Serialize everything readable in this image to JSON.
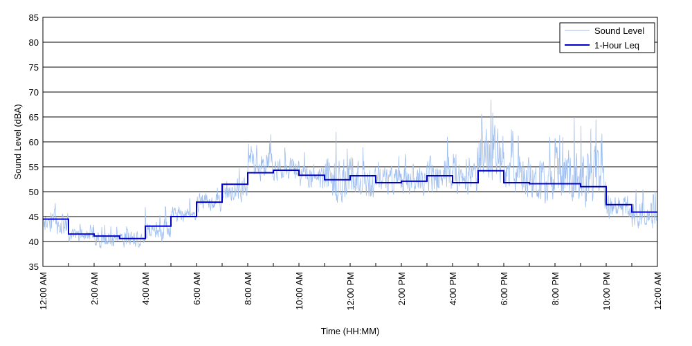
{
  "chart_data": {
    "type": "line",
    "title": "",
    "xlabel": "Time (HH:MM)",
    "ylabel": "Sound Level (dBA)",
    "ylim": [
      35,
      85
    ],
    "yticks": [
      35,
      40,
      45,
      50,
      55,
      60,
      65,
      70,
      75,
      80,
      85
    ],
    "xlim_hours": [
      0,
      24
    ],
    "xticks": [
      {
        "hour": 0,
        "label": "12:00 AM"
      },
      {
        "hour": 2,
        "label": "2:00 AM"
      },
      {
        "hour": 4,
        "label": "4:00 AM"
      },
      {
        "hour": 6,
        "label": "6:00 AM"
      },
      {
        "hour": 8,
        "label": "8:00 AM"
      },
      {
        "hour": 10,
        "label": "10:00 AM"
      },
      {
        "hour": 12,
        "label": "12:00 PM"
      },
      {
        "hour": 14,
        "label": "2:00 PM"
      },
      {
        "hour": 16,
        "label": "4:00 PM"
      },
      {
        "hour": 18,
        "label": "6:00 PM"
      },
      {
        "hour": 20,
        "label": "8:00 PM"
      },
      {
        "hour": 22,
        "label": "10:00 PM"
      },
      {
        "hour": 24,
        "label": "12:00 AM"
      }
    ],
    "grid": "horizontal",
    "legend_position": "top-right",
    "series": [
      {
        "name": "Sound Level",
        "color": "#9fbef0",
        "approx_hourly_range": [
          [
            0,
            40,
            49
          ],
          [
            1,
            39,
            44
          ],
          [
            2,
            38,
            44
          ],
          [
            3,
            38,
            44
          ],
          [
            4,
            39,
            47
          ],
          [
            5,
            43,
            49
          ],
          [
            6,
            45,
            52
          ],
          [
            7,
            47,
            55
          ],
          [
            8,
            51,
            61
          ],
          [
            9,
            51,
            59
          ],
          [
            10,
            49,
            58
          ],
          [
            11,
            46,
            62
          ],
          [
            12,
            47,
            61
          ],
          [
            13,
            48,
            58
          ],
          [
            14,
            48,
            58
          ],
          [
            15,
            48,
            61
          ],
          [
            16,
            48,
            59
          ],
          [
            17,
            49,
            68
          ],
          [
            18,
            47,
            63
          ],
          [
            19,
            46,
            61
          ],
          [
            20,
            45,
            65
          ],
          [
            21,
            44,
            64
          ],
          [
            22,
            43,
            52
          ],
          [
            23,
            41,
            52
          ]
        ],
        "peaks": [
          {
            "hour": 17.5,
            "value": 68.5
          },
          {
            "hour": 20.75,
            "value": 65
          },
          {
            "hour": 21.6,
            "value": 64.5
          },
          {
            "hour": 18.3,
            "value": 62.5
          },
          {
            "hour": 11.45,
            "value": 62
          },
          {
            "hour": 8.9,
            "value": 61.5
          },
          {
            "hour": 15.8,
            "value": 61
          },
          {
            "hour": 19.8,
            "value": 61
          }
        ]
      },
      {
        "name": "1-Hour Leq",
        "color": "#0000cc",
        "values": [
          44.5,
          41.5,
          41.1,
          40.6,
          43.1,
          45.0,
          47.9,
          51.5,
          53.8,
          54.3,
          53.3,
          52.4,
          53.2,
          51.8,
          52.1,
          53.2,
          51.8,
          54.2,
          51.8,
          51.6,
          51.6,
          51.0,
          47.4,
          45.9
        ]
      }
    ]
  }
}
